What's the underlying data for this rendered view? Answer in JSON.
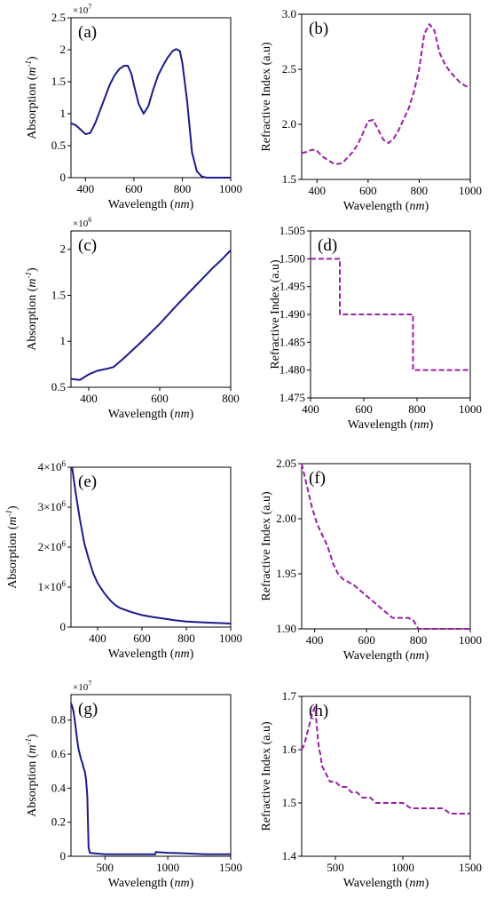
{
  "colors": {
    "absorption": "#1a1a8c",
    "refractive": "#9b1fa6",
    "frame": "#000000"
  },
  "chart_data": [
    {
      "id": "a",
      "type": "line",
      "panel_label": "(a)",
      "multiplier": {
        "base": "×10",
        "exp": "7"
      },
      "xlabel": {
        "main": "Wavelength (",
        "unit": "nm",
        "end": ")"
      },
      "ylabel": {
        "main": "Absorption (",
        "unit": "m",
        "sup": "-1",
        "end": ")"
      },
      "xlim": [
        340,
        1000
      ],
      "ylim": [
        0,
        2.5
      ],
      "xticks": [
        400,
        600,
        800,
        1000
      ],
      "xtick_labels": [
        "400",
        "600",
        "800",
        "1000"
      ],
      "yticks": [
        0,
        0.5,
        1,
        1.5,
        2,
        2.5
      ],
      "ytick_labels": [
        "0",
        "0.5",
        "1",
        "1.5",
        "2",
        "2.5"
      ],
      "dashed": false,
      "series": [
        {
          "x": [
            340,
            360,
            380,
            400,
            420,
            440,
            460,
            480,
            500,
            520,
            540,
            560,
            575,
            590,
            600,
            620,
            640,
            660,
            680,
            700,
            720,
            740,
            760,
            775,
            790,
            800,
            820,
            840,
            860,
            880,
            900,
            950,
            1000
          ],
          "y": [
            0.85,
            0.82,
            0.75,
            0.68,
            0.7,
            0.85,
            1.05,
            1.25,
            1.45,
            1.6,
            1.7,
            1.75,
            1.75,
            1.62,
            1.45,
            1.15,
            1.0,
            1.12,
            1.38,
            1.6,
            1.75,
            1.88,
            1.98,
            2.01,
            1.98,
            1.8,
            1.2,
            0.4,
            0.1,
            0.02,
            0,
            0,
            0
          ]
        }
      ]
    },
    {
      "id": "b",
      "type": "line",
      "panel_label": "(b)",
      "xlabel": {
        "main": "Wavelength (",
        "unit": "nm",
        "end": ")"
      },
      "ylabel": {
        "main": "Refractive Index (a.u)"
      },
      "xlim": [
        340,
        1000
      ],
      "ylim": [
        1.5,
        3.0
      ],
      "xticks": [
        400,
        600,
        800,
        1000
      ],
      "xtick_labels": [
        "400",
        "600",
        "800",
        "1000"
      ],
      "yticks": [
        1.5,
        2.0,
        2.5,
        3.0
      ],
      "ytick_labels": [
        "1.5",
        "2.0",
        "2.5",
        "3.0"
      ],
      "dashed": true,
      "series": [
        {
          "x": [
            340,
            360,
            380,
            400,
            420,
            440,
            460,
            480,
            500,
            520,
            540,
            560,
            580,
            600,
            620,
            640,
            660,
            680,
            700,
            720,
            740,
            760,
            780,
            800,
            820,
            840,
            860,
            880,
            900,
            920,
            940,
            960,
            980,
            1000
          ],
          "y": [
            1.74,
            1.75,
            1.77,
            1.76,
            1.71,
            1.68,
            1.65,
            1.64,
            1.65,
            1.7,
            1.75,
            1.82,
            1.92,
            2.03,
            2.04,
            1.95,
            1.86,
            1.83,
            1.87,
            1.95,
            2.05,
            2.15,
            2.3,
            2.5,
            2.82,
            2.91,
            2.85,
            2.65,
            2.55,
            2.48,
            2.43,
            2.38,
            2.35,
            2.33
          ]
        }
      ]
    },
    {
      "id": "c",
      "type": "line",
      "panel_label": "(c)",
      "multiplier": {
        "base": "×10",
        "exp": "6"
      },
      "xlabel": {
        "main": "Wavelength (",
        "unit": "nm",
        "end": ")"
      },
      "ylabel": {
        "main": "Absorption (",
        "unit": "m",
        "sup": "-1",
        "end": ")"
      },
      "xlim": [
        350,
        800
      ],
      "ylim": [
        0.5,
        2.2
      ],
      "xticks": [
        400,
        600,
        800
      ],
      "xtick_labels": [
        "400",
        "600",
        "800"
      ],
      "yticks": [
        0.5,
        1,
        1.5,
        2
      ],
      "ytick_labels": [
        "0.5",
        "1",
        "1.5",
        "2"
      ],
      "dashed": false,
      "series": [
        {
          "x": [
            350,
            375,
            400,
            425,
            450,
            470,
            500,
            550,
            600,
            650,
            700,
            750,
            770,
            800
          ],
          "y": [
            0.59,
            0.58,
            0.64,
            0.68,
            0.7,
            0.72,
            0.82,
            1.0,
            1.19,
            1.4,
            1.6,
            1.8,
            1.87,
            1.99
          ]
        }
      ]
    },
    {
      "id": "d",
      "type": "line",
      "panel_label": "(d)",
      "xlabel": {
        "main": "Wavelength (",
        "unit": "nm",
        "end": ")"
      },
      "ylabel": {
        "main": "Refractive Index (a.u)"
      },
      "xlim": [
        400,
        1000
      ],
      "ylim": [
        1.475,
        1.505
      ],
      "xticks": [
        400,
        600,
        800,
        1000
      ],
      "xtick_labels": [
        "400",
        "600",
        "800",
        "1000"
      ],
      "yticks": [
        1.475,
        1.48,
        1.485,
        1.49,
        1.495,
        1.5,
        1.505
      ],
      "ytick_labels": [
        "1.475",
        "1.480",
        "1.485",
        "1.490",
        "1.495",
        "1.500",
        "1.505"
      ],
      "dashed": true,
      "series": [
        {
          "x": [
            400,
            510,
            510,
            520,
            780,
            785,
            785,
            1000
          ],
          "y": [
            1.5,
            1.5,
            1.49,
            1.49,
            1.49,
            1.49,
            1.48,
            1.48
          ]
        }
      ]
    },
    {
      "id": "e",
      "type": "line",
      "panel_label": "(e)",
      "xlabel": {
        "main": "Wavelength (",
        "unit": "nm",
        "end": ")"
      },
      "ylabel": {
        "main": "Absorption (",
        "unit": "m",
        "sup": "-1",
        "end": ")"
      },
      "xlim": [
        280,
        1000
      ],
      "ylim": [
        0,
        4000000
      ],
      "xticks": [
        400,
        600,
        800,
        1000
      ],
      "xtick_labels": [
        "400",
        "600",
        "800",
        "1000"
      ],
      "yticks": [
        0,
        1000000,
        2000000,
        3000000,
        4000000
      ],
      "ytick_labels": [
        {
          "base": "0",
          "exp": ""
        },
        {
          "base": "1×10",
          "exp": "6"
        },
        {
          "base": "2×10",
          "exp": "6"
        },
        {
          "base": "3×10",
          "exp": "6"
        },
        {
          "base": "4×10",
          "exp": "6"
        }
      ],
      "dashed": false,
      "series": [
        {
          "x": [
            285,
            300,
            320,
            340,
            360,
            380,
            400,
            430,
            460,
            480,
            500,
            550,
            600,
            650,
            700,
            750,
            800,
            900,
            1000
          ],
          "y": [
            4000000,
            3400000,
            2700000,
            2100000,
            1700000,
            1350000,
            1100000,
            850000,
            650000,
            550000,
            480000,
            380000,
            300000,
            250000,
            210000,
            170000,
            140000,
            110000,
            90000
          ]
        }
      ]
    },
    {
      "id": "f",
      "type": "line",
      "panel_label": "(f)",
      "xlabel": {
        "main": "Wavelength (",
        "unit": "nm",
        "end": ")"
      },
      "ylabel": {
        "main": "Refractive Index (a.u)"
      },
      "xlim": [
        350,
        1000
      ],
      "ylim": [
        1.9,
        2.05
      ],
      "xticks": [
        400,
        600,
        800,
        1000
      ],
      "xtick_labels": [
        "400",
        "600",
        "800",
        "1000"
      ],
      "yticks": [
        1.9,
        1.95,
        2.0,
        2.05
      ],
      "ytick_labels": [
        "1.90",
        "1.95",
        "2.00",
        "2.05"
      ],
      "dashed": true,
      "series": [
        {
          "x": [
            350,
            370,
            390,
            410,
            430,
            450,
            470,
            490,
            510,
            550,
            600,
            650,
            700,
            720,
            760,
            780,
            800,
            850,
            900,
            1000
          ],
          "y": [
            2.05,
            2.03,
            2.01,
            1.995,
            1.985,
            1.975,
            1.96,
            1.95,
            1.945,
            1.94,
            1.93,
            1.92,
            1.91,
            1.91,
            1.91,
            1.908,
            1.9,
            1.9,
            1.9,
            1.9
          ]
        }
      ]
    },
    {
      "id": "g",
      "type": "line",
      "panel_label": "(g)",
      "multiplier": {
        "base": "×10",
        "exp": "7"
      },
      "xlabel": {
        "main": "Wavelength (",
        "unit": "nm",
        "end": ")"
      },
      "ylabel": {
        "main": "Absorption (",
        "unit": "m",
        "sup": "-1",
        "end": ")"
      },
      "xlim": [
        230,
        1500
      ],
      "ylim": [
        0,
        0.95
      ],
      "xticks": [
        500,
        1000,
        1500
      ],
      "xtick_labels": [
        "500",
        "1000",
        "1500"
      ],
      "yticks": [
        0,
        0.2,
        0.4,
        0.6,
        0.8
      ],
      "ytick_labels": [
        "0",
        "0.2",
        "0.4",
        "0.6",
        "0.8"
      ],
      "dashed": false,
      "series": [
        {
          "x": [
            230,
            240,
            250,
            260,
            270,
            280,
            290,
            300,
            310,
            320,
            330,
            340,
            350,
            360,
            365,
            370,
            380,
            400,
            450,
            500,
            550,
            600,
            700,
            800,
            900,
            905,
            1000,
            1100,
            1200,
            1300,
            1400,
            1450,
            1500
          ],
          "y": [
            0.9,
            0.88,
            0.85,
            0.8,
            0.74,
            0.68,
            0.63,
            0.6,
            0.57,
            0.55,
            0.52,
            0.5,
            0.45,
            0.35,
            0.2,
            0.05,
            0.02,
            0.018,
            0.015,
            0.012,
            0.012,
            0.012,
            0.012,
            0.012,
            0.012,
            0.025,
            0.02,
            0.018,
            0.015,
            0.012,
            0.012,
            0.012,
            0.012
          ]
        }
      ]
    },
    {
      "id": "h",
      "type": "line",
      "panel_label": "(h)",
      "xlabel": {
        "main": "Wavelength (",
        "unit": "nm",
        "end": ")"
      },
      "ylabel": {
        "main": "Refractive Index (a.u)"
      },
      "xlim": [
        250,
        1500
      ],
      "ylim": [
        1.4,
        1.7
      ],
      "xticks": [
        500,
        1000,
        1500
      ],
      "xtick_labels": [
        "500",
        "1000",
        "1500"
      ],
      "yticks": [
        1.4,
        1.5,
        1.6,
        1.7
      ],
      "ytick_labels": [
        "1.4",
        "1.5",
        "1.6",
        "1.7"
      ],
      "dashed": true,
      "series": [
        {
          "x": [
            250,
            270,
            290,
            310,
            330,
            350,
            360,
            370,
            380,
            390,
            400,
            420,
            440,
            460,
            480,
            500,
            540,
            580,
            620,
            640,
            660,
            700,
            720,
            760,
            800,
            900,
            1000,
            1060,
            1100,
            1200,
            1300,
            1350,
            1400,
            1500
          ],
          "y": [
            1.6,
            1.61,
            1.63,
            1.65,
            1.67,
            1.68,
            1.65,
            1.62,
            1.6,
            1.59,
            1.57,
            1.56,
            1.55,
            1.54,
            1.54,
            1.54,
            1.53,
            1.53,
            1.52,
            1.52,
            1.52,
            1.51,
            1.51,
            1.51,
            1.5,
            1.5,
            1.5,
            1.49,
            1.49,
            1.49,
            1.49,
            1.48,
            1.48,
            1.48
          ]
        }
      ]
    }
  ]
}
